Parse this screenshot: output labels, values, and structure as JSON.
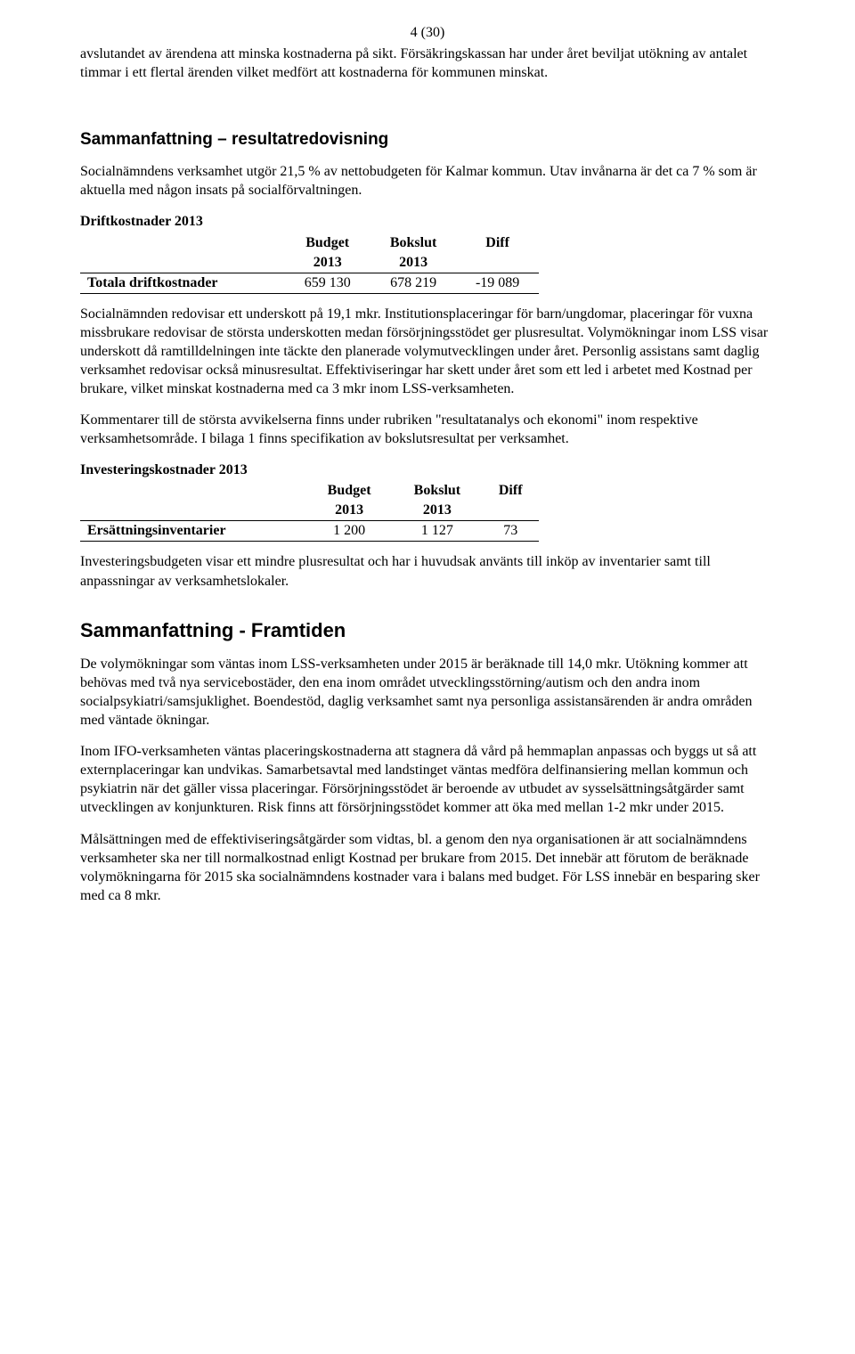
{
  "page_number": "4 (30)",
  "p1": "avslutandet av ärendena att minska kostnaderna på sikt. Försäkringskassan har under året beviljat utökning av antalet timmar i ett flertal ärenden vilket medfört att kostnaderna för kommunen minskat.",
  "h1": "Sammanfattning – resultatredovisning",
  "p2": "Socialnämndens verksamhet utgör 21,5 % av nettobudgeten för Kalmar kommun. Utav invånarna är det ca 7 % som är aktuella med någon insats på socialförvaltningen.",
  "sub1": "Driftkostnader 2013",
  "table1": {
    "headers_top": [
      "",
      "Budget",
      "Bokslut",
      "Diff"
    ],
    "headers_sub": [
      "",
      "2013",
      "2013",
      ""
    ],
    "row": [
      "Totala driftkostnader",
      "659 130",
      "678 219",
      "-19 089"
    ]
  },
  "p3": "Socialnämnden redovisar ett underskott på 19,1 mkr. Institutionsplaceringar för barn/ungdomar, placeringar för vuxna missbrukare redovisar de största underskotten medan försörjningsstödet ger plusresultat. Volymökningar inom LSS visar underskott då ramtilldelningen inte täckte den planerade volymutvecklingen under året.  Personlig assistans samt daglig verksamhet redovisar också minusresultat. Effektiviseringar har skett under året som ett led i arbetet med Kostnad per brukare, vilket minskat kostnaderna med ca 3 mkr inom LSS-verksamheten.",
  "p4": "Kommentarer till de största avvikelserna finns under rubriken \"resultatanalys och ekonomi\" inom respektive verksamhetsområde.  I bilaga 1 finns specifikation av bokslutsresultat per verksamhet.",
  "sub2": "Investeringskostnader 2013",
  "table2": {
    "headers_top": [
      "",
      "Budget",
      "Bokslut",
      "Diff"
    ],
    "headers_sub": [
      "",
      "2013",
      "2013",
      ""
    ],
    "row": [
      "Ersättningsinventarier",
      "1 200",
      "1 127",
      "73"
    ]
  },
  "p5": "Investeringsbudgeten visar ett mindre plusresultat och har i huvudsak använts till inköp av inventarier samt till anpassningar av verksamhetslokaler.",
  "h2": "Sammanfattning - Framtiden",
  "p6": "De volymökningar som väntas inom LSS-verksamheten under 2015 är beräknade till 14,0 mkr. Utökning kommer att behövas med två nya servicebostäder, den ena inom området utvecklingsstörning/autism och den andra inom socialpsykiatri/samsjuklighet. Boendestöd, daglig verksamhet samt nya personliga assistansärenden är andra områden med väntade ökningar.",
  "p7": "Inom IFO-verksamheten väntas placeringskostnaderna att stagnera då vård på hemmaplan anpassas och byggs ut så att externplaceringar kan undvikas. Samarbetsavtal med landstinget väntas medföra delfinansiering mellan kommun och psykiatrin när det gäller vissa placeringar.  Försörjningsstödet är beroende av utbudet av sysselsättningsåtgärder samt utvecklingen av konjunkturen. Risk finns att försörjningsstödet kommer att öka med mellan 1-2 mkr under 2015.",
  "p8": "Målsättningen med de effektiviseringsåtgärder som vidtas, bl. a genom den nya organisationen är att socialnämndens verksamheter ska ner till normalkostnad enligt Kostnad per brukare from 2015. Det innebär att förutom de beräknade volymökningarna för 2015 ska socialnämndens kostnader vara i balans med budget. För LSS innebär en besparing sker med ca 8 mkr."
}
